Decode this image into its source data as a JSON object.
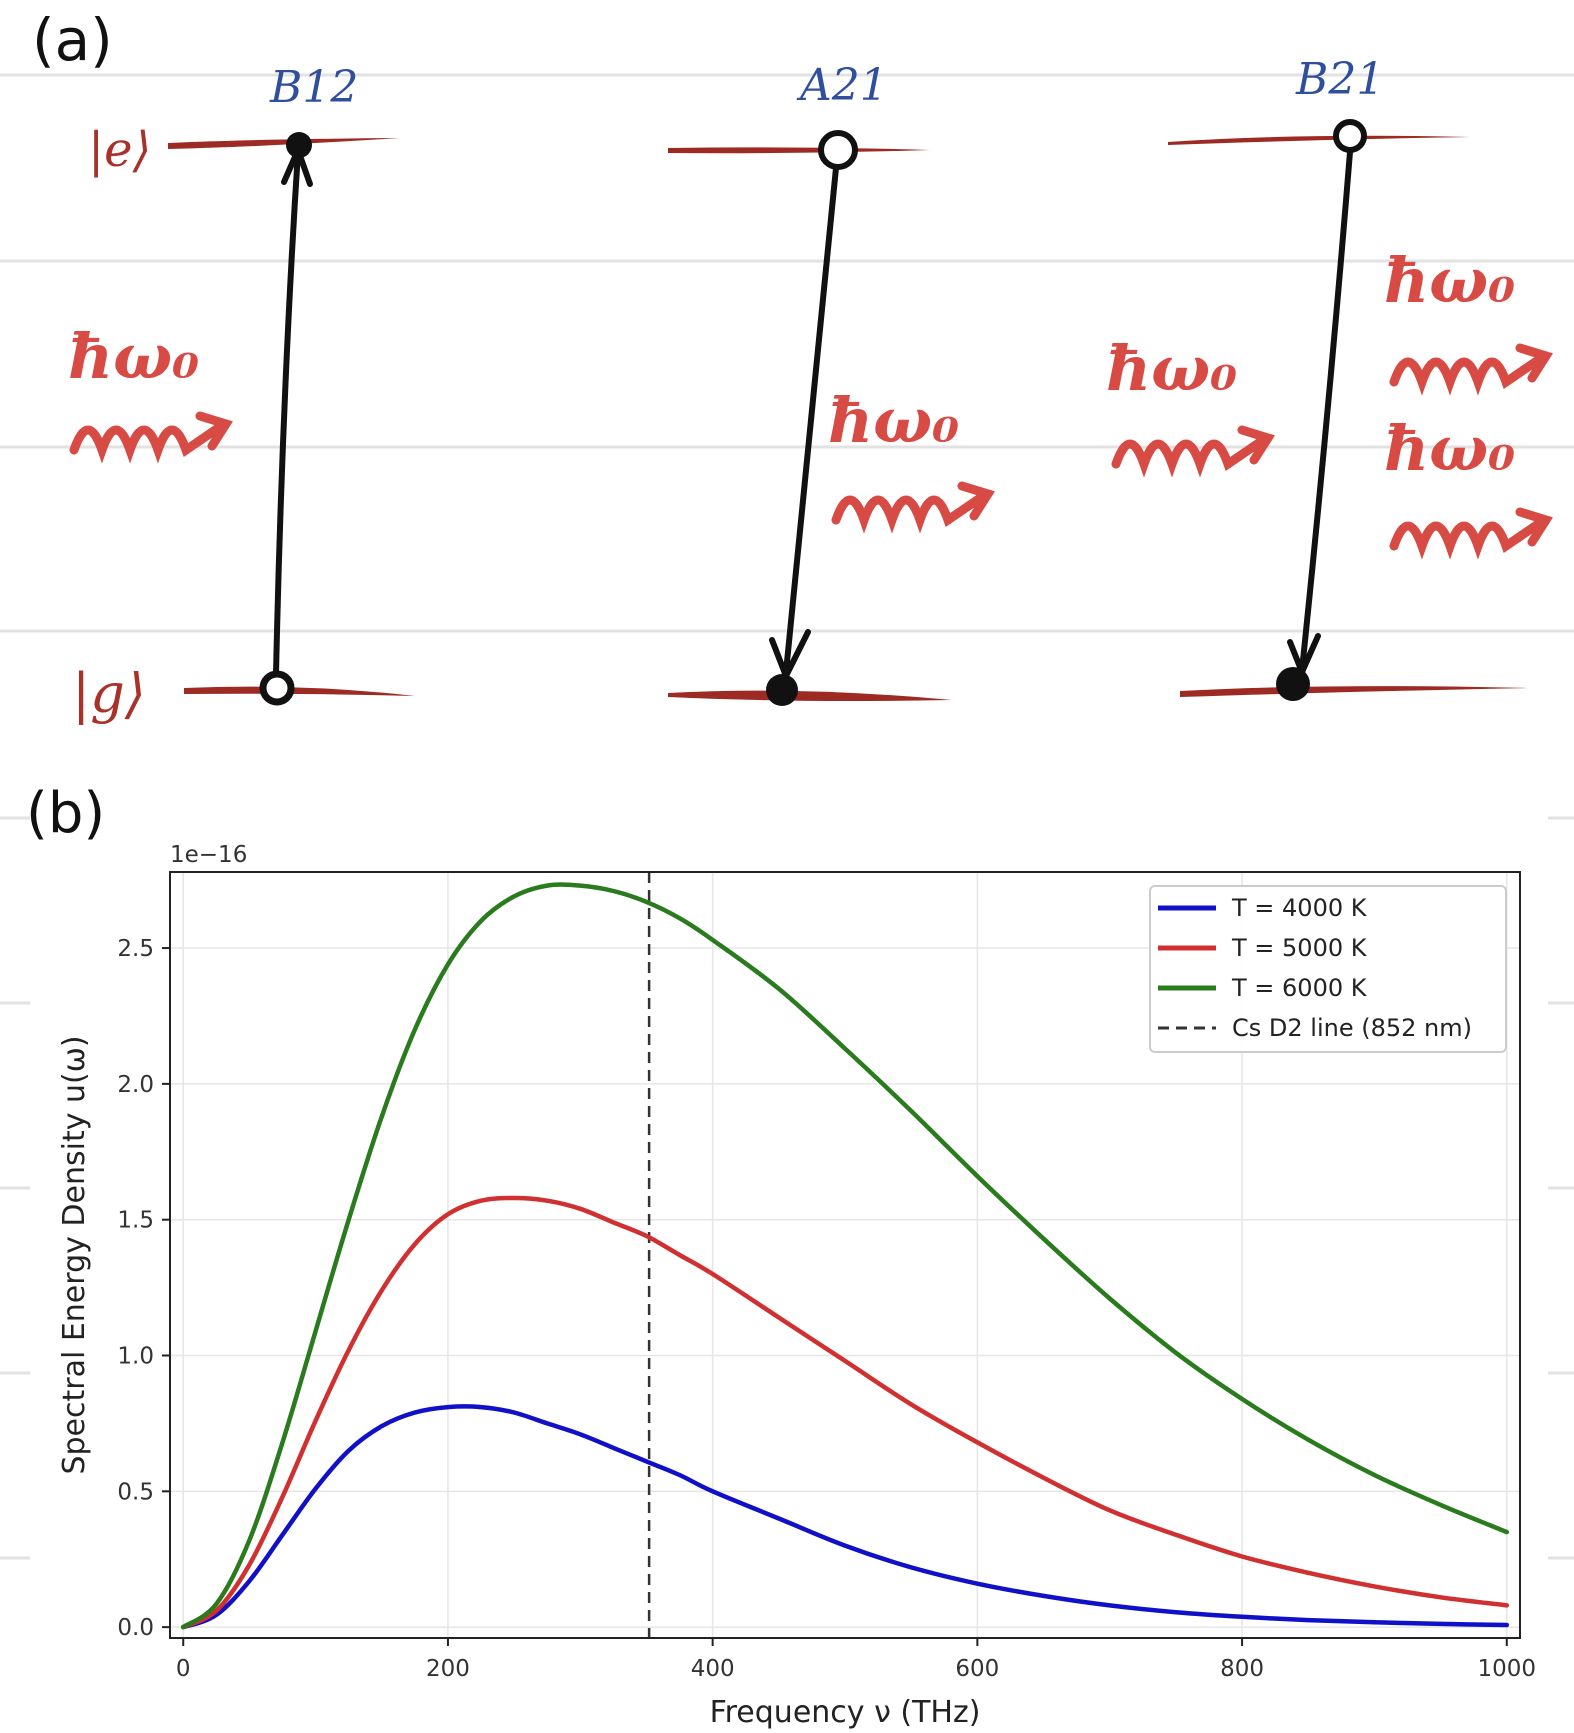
{
  "panel_a": {
    "label": "(a)",
    "levels": {
      "excited": "|e⟩",
      "ground": "|g⟩"
    },
    "processes": [
      {
        "coefficient": "B12",
        "photons": [
          "ħω₀"
        ]
      },
      {
        "coefficient": "A21",
        "photons": [
          "ħω₀"
        ]
      },
      {
        "coefficient": "B21",
        "incoming_photons": [
          "ħω₀"
        ],
        "outgoing_photons": [
          "ħω₀",
          "ħω₀"
        ]
      }
    ]
  },
  "panel_b": {
    "label": "(b)"
  },
  "chart_data": {
    "type": "line",
    "xlabel": "Frequency ν (THz)",
    "ylabel": "Spectral Energy Density u(ω)",
    "y_offset_label": "1e−16",
    "xlim": [
      -10,
      1010
    ],
    "ylim": [
      -0.04,
      2.78
    ],
    "xticks": [
      0,
      200,
      400,
      600,
      800,
      1000
    ],
    "xtick_labels": [
      "0",
      "200",
      "400",
      "600",
      "800",
      "1000"
    ],
    "yticks": [
      0.0,
      0.5,
      1.0,
      1.5,
      2.0,
      2.5
    ],
    "ytick_labels": [
      "0.0",
      "0.5",
      "1.0",
      "1.5",
      "2.0",
      "2.5"
    ],
    "grid": true,
    "legend_position": "top-right",
    "x": [
      0,
      25,
      50,
      75,
      100,
      125,
      150,
      175,
      200,
      225,
      250,
      275,
      300,
      325,
      350,
      375,
      400,
      450,
      500,
      550,
      600,
      650,
      700,
      750,
      800,
      850,
      900,
      950,
      1000
    ],
    "series": [
      {
        "name": "T = 4000 K",
        "color": "#1010c8",
        "style": "solid",
        "values": [
          0,
          0.045,
          0.17,
          0.34,
          0.51,
          0.65,
          0.74,
          0.79,
          0.81,
          0.81,
          0.79,
          0.75,
          0.71,
          0.66,
          0.61,
          0.56,
          0.5,
          0.4,
          0.3,
          0.22,
          0.16,
          0.115,
          0.08,
          0.055,
          0.038,
          0.026,
          0.018,
          0.012,
          0.008
        ]
      },
      {
        "name": "T = 5000 K",
        "color": "#d03030",
        "style": "solid",
        "values": [
          0,
          0.06,
          0.23,
          0.48,
          0.76,
          1.02,
          1.24,
          1.41,
          1.52,
          1.57,
          1.58,
          1.57,
          1.54,
          1.49,
          1.44,
          1.37,
          1.3,
          1.14,
          0.98,
          0.82,
          0.68,
          0.55,
          0.43,
          0.34,
          0.26,
          0.2,
          0.15,
          0.11,
          0.08
        ]
      },
      {
        "name": "T = 6000 K",
        "color": "#2a7a1e",
        "style": "solid",
        "values": [
          0,
          0.085,
          0.32,
          0.68,
          1.09,
          1.5,
          1.88,
          2.2,
          2.44,
          2.6,
          2.69,
          2.73,
          2.73,
          2.71,
          2.67,
          2.61,
          2.53,
          2.35,
          2.13,
          1.9,
          1.66,
          1.43,
          1.21,
          1.01,
          0.84,
          0.69,
          0.56,
          0.45,
          0.35
        ]
      }
    ],
    "vline": {
      "name": "Cs D2 line (852 nm)",
      "x": 352,
      "color": "#333333",
      "style": "dashed"
    }
  }
}
